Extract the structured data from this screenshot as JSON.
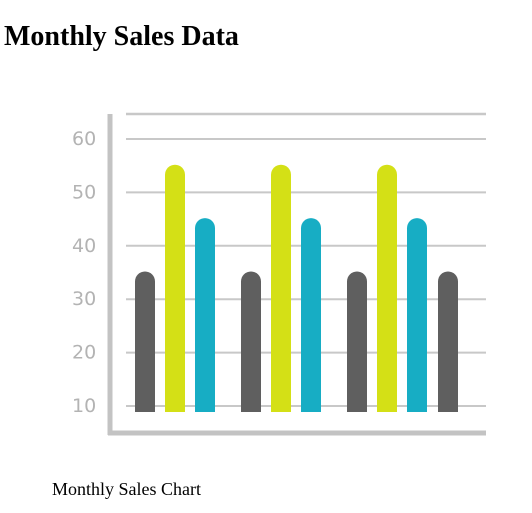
{
  "page": {
    "title": "Monthly Sales Data",
    "caption": "Monthly Sales Chart"
  },
  "chart_data": {
    "type": "bar",
    "title": "",
    "xlabel": "",
    "ylabel": "",
    "ylim": [
      10,
      60
    ],
    "yticks": [
      10,
      20,
      30,
      40,
      50,
      60
    ],
    "grid": true,
    "legend": "none",
    "bar_style": "rounded-top",
    "colors": {
      "dark": "#5f5f5f",
      "lime": "#d4e016",
      "teal": "#17adc4",
      "gridline": "#c8c8c8",
      "axis": "#c3c3c3",
      "tick_label": "#b3b3b3"
    },
    "groups": [
      {
        "bars": [
          {
            "value": 35,
            "color": "dark"
          },
          {
            "value": 55,
            "color": "lime"
          },
          {
            "value": 45,
            "color": "teal"
          }
        ]
      },
      {
        "bars": [
          {
            "value": 35,
            "color": "dark"
          },
          {
            "value": 55,
            "color": "lime"
          },
          {
            "value": 45,
            "color": "teal"
          }
        ]
      },
      {
        "bars": [
          {
            "value": 35,
            "color": "dark"
          },
          {
            "value": 55,
            "color": "lime"
          },
          {
            "value": 45,
            "color": "teal"
          }
        ]
      },
      {
        "bars": [
          {
            "value": 35,
            "color": "dark"
          }
        ]
      }
    ]
  }
}
